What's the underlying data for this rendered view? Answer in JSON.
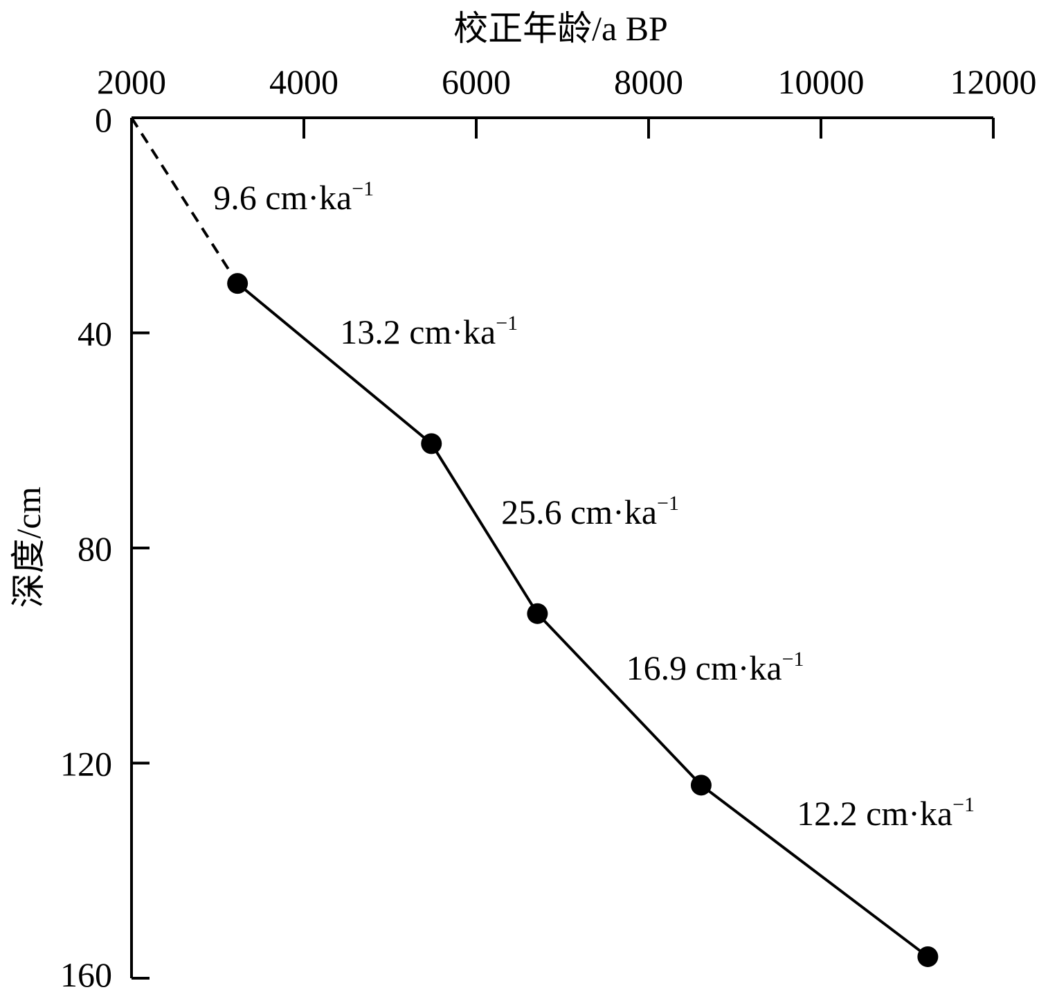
{
  "chart_data": {
    "type": "line",
    "xlabel": "校正年龄/a BP",
    "ylabel": "深度/cm",
    "xlim": [
      2000,
      12000
    ],
    "ylim": [
      0,
      160
    ],
    "y_inverted": true,
    "x_axis_position": "top",
    "grid": false,
    "x_ticks": [
      "2000",
      "4000",
      "6000",
      "8000",
      "10000",
      "12000"
    ],
    "y_ticks": [
      "0",
      "40",
      "80",
      "120",
      "160"
    ],
    "x_tick_values": [
      2000,
      4000,
      6000,
      8000,
      10000,
      12000
    ],
    "y_tick_values": [
      0,
      40,
      80,
      120,
      160
    ],
    "points": [
      {
        "x": 3230,
        "y": 30.8
      },
      {
        "x": 5480,
        "y": 60.6
      },
      {
        "x": 6710,
        "y": 92.2
      },
      {
        "x": 8610,
        "y": 124.1
      },
      {
        "x": 11240,
        "y": 156.0
      }
    ],
    "extrapolation": {
      "style": "dashed",
      "from": {
        "x": 2000,
        "y": 0
      },
      "to": {
        "x": 3230,
        "y": 30.8
      }
    },
    "rate_unit": "cm·ka",
    "rate_unit_exponent": "−1",
    "segment_labels": [
      {
        "text": "9.6",
        "x": 2950,
        "y": 17
      },
      {
        "text": "13.2",
        "x": 4420,
        "y": 42
      },
      {
        "text": "25.6",
        "x": 6290,
        "y": 75.5
      },
      {
        "text": "16.9",
        "x": 7740,
        "y": 104.5
      },
      {
        "text": "12.2",
        "x": 9720,
        "y": 131.5
      }
    ],
    "colors": {
      "line": "#000000",
      "marker": "#000000",
      "axis": "#000000"
    }
  }
}
